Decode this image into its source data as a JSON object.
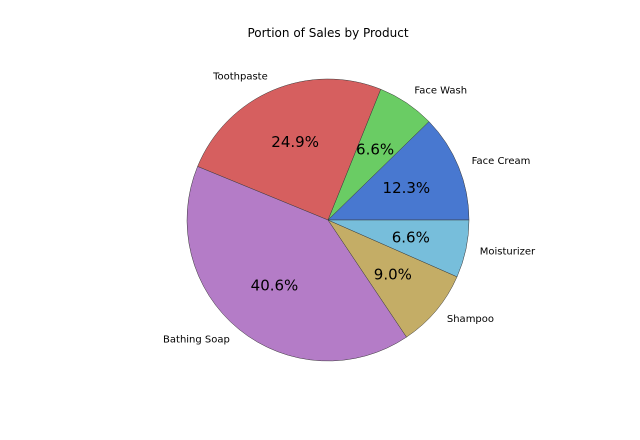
{
  "chart_data": {
    "type": "pie",
    "title": "Portion of Sales by Product",
    "start_angle_deg": 0,
    "direction": "counterclockwise",
    "slices": [
      {
        "label": "Face Cream",
        "value": 12.3,
        "pct_text": "12.3%",
        "color": "#4878d0"
      },
      {
        "label": "Face Wash",
        "value": 6.6,
        "pct_text": "6.6%",
        "color": "#6acc64"
      },
      {
        "label": "Toothpaste",
        "value": 24.9,
        "pct_text": "24.9%",
        "color": "#d65f5f"
      },
      {
        "label": "Bathing Soap",
        "value": 40.6,
        "pct_text": "40.6%",
        "color": "#b47cc7"
      },
      {
        "label": "Shampoo",
        "value": 9.0,
        "pct_text": "9.0%",
        "color": "#c4ad66"
      },
      {
        "label": "Moisturizer",
        "value": 6.6,
        "pct_text": "6.6%",
        "color": "#77bedb"
      }
    ]
  }
}
